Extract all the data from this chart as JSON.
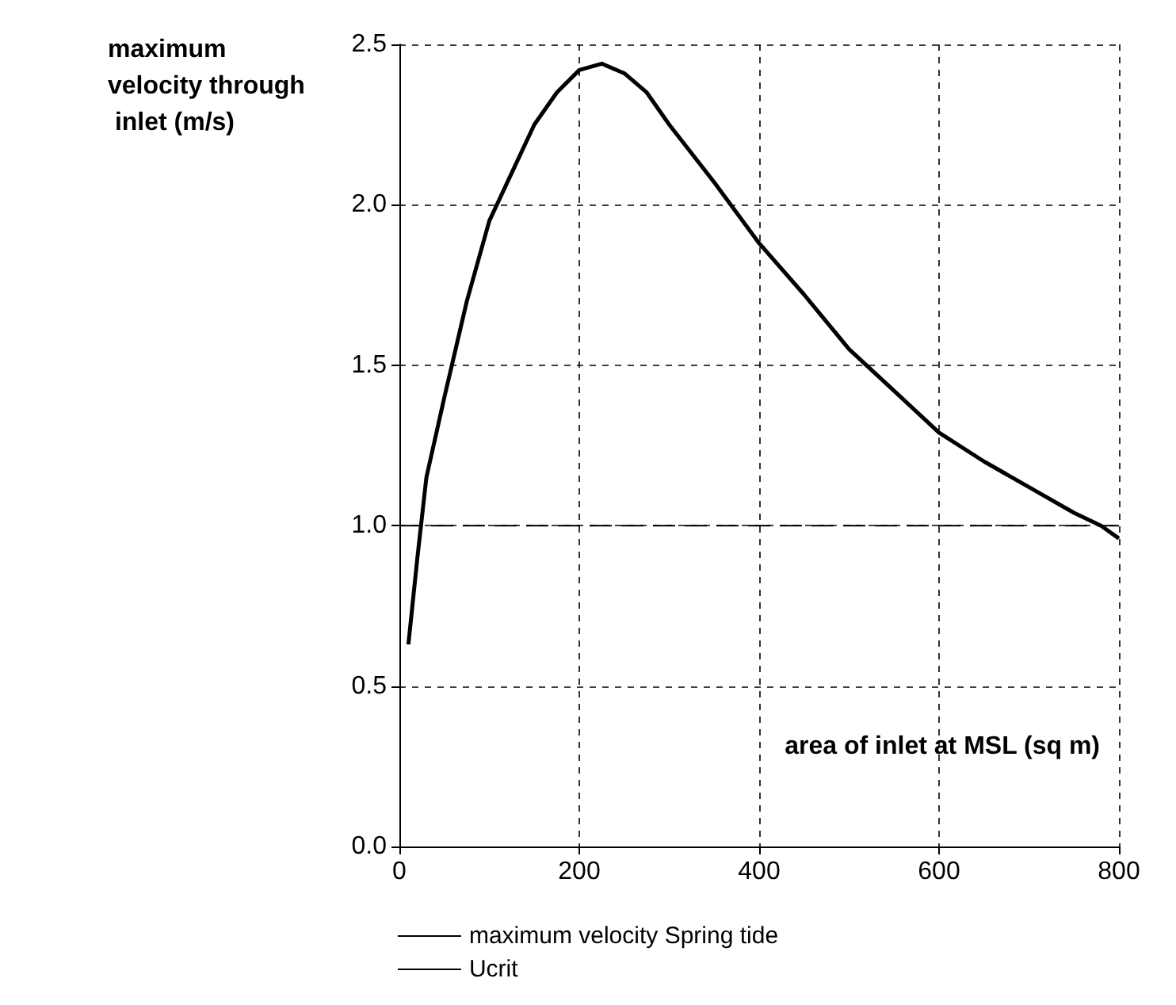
{
  "chart_data": {
    "type": "line",
    "xlabel": "area of inlet at MSL (sq m)",
    "ylabel": "maximum velocity through inlet (m/s)",
    "xlim": [
      0,
      800
    ],
    "xticks": [
      0,
      200,
      400,
      600,
      800
    ],
    "ylim": [
      0,
      2.5
    ],
    "yticks": [
      {
        "value": 0,
        "label": "0.0"
      },
      0.5,
      {
        "value": 1,
        "label": "1.0"
      },
      1.5,
      {
        "value": 2,
        "label": "2.0"
      },
      2.5
    ],
    "grid": true,
    "legend": "bottom",
    "marker": "none",
    "series": [
      {
        "name": "maximum velocity Spring tide",
        "color": "#000000",
        "line_style": "solid",
        "x": [
          10,
          20,
          30,
          50,
          75,
          100,
          125,
          150,
          175,
          200,
          225,
          250,
          275,
          300,
          350,
          400,
          450,
          500,
          550,
          600,
          650,
          700,
          750,
          780,
          800
        ],
        "values": [
          0.63,
          0.9,
          1.15,
          1.4,
          1.7,
          1.95,
          2.1,
          2.25,
          2.35,
          2.42,
          2.44,
          2.41,
          2.35,
          2.25,
          2.07,
          1.88,
          1.72,
          1.55,
          1.42,
          1.29,
          1.2,
          1.12,
          1.04,
          1.0,
          0.96
        ]
      },
      {
        "name": "Ucrit",
        "color": "#000000",
        "line_style": "dashed",
        "x": [
          0,
          800
        ],
        "values": [
          1,
          1
        ]
      }
    ]
  }
}
